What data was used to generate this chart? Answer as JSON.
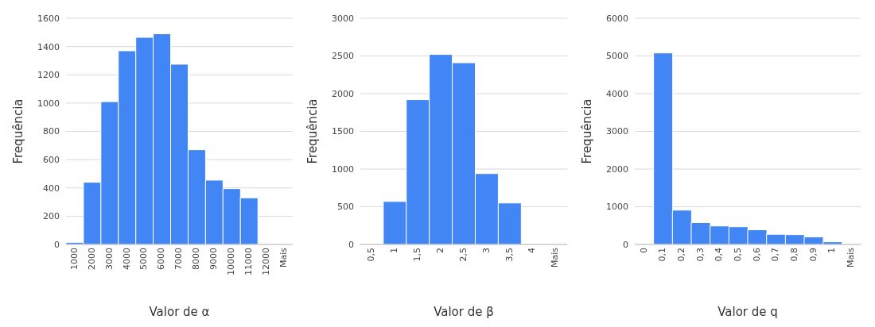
{
  "chart_data": [
    {
      "type": "bar",
      "xlabel": "Valor de α",
      "ylabel": "Frequência",
      "categories": [
        "1000",
        "2000",
        "3000",
        "4000",
        "5000",
        "6000",
        "7000",
        "8000",
        "9000",
        "10000",
        "11000",
        "12000",
        "Mais"
      ],
      "values": [
        15,
        440,
        1010,
        1370,
        1465,
        1490,
        1275,
        670,
        455,
        395,
        330,
        0,
        0
      ],
      "color": "#4285f4",
      "ylim": [
        0,
        1600
      ],
      "yticks": [
        0,
        200,
        400,
        600,
        800,
        1000,
        1200,
        1400,
        1600
      ],
      "grid": "y"
    },
    {
      "type": "bar",
      "xlabel": "Valor de β",
      "ylabel": "Frequência",
      "categories": [
        "0,5",
        "1",
        "1,5",
        "2",
        "2,5",
        "3",
        "3,5",
        "4",
        "Mais"
      ],
      "values": [
        0,
        570,
        1920,
        2520,
        2410,
        940,
        550,
        0,
        0
      ],
      "color": "#4285f4",
      "ylim": [
        0,
        3000
      ],
      "yticks": [
        0,
        500,
        1000,
        1500,
        2000,
        2500,
        3000
      ],
      "grid": "y"
    },
    {
      "type": "bar",
      "xlabel": "Valor de q",
      "ylabel": "Frequência",
      "categories": [
        "0",
        "0,1",
        "0,2",
        "0,3",
        "0,4",
        "0,5",
        "0,6",
        "0,7",
        "0,8",
        "0,9",
        "1",
        "Mais"
      ],
      "values": [
        0,
        5080,
        910,
        580,
        490,
        470,
        390,
        270,
        260,
        200,
        70,
        0
      ],
      "color": "#4285f4",
      "ylim": [
        0,
        6000
      ],
      "yticks": [
        0,
        1000,
        2000,
        3000,
        4000,
        5000,
        6000
      ],
      "grid": "y"
    }
  ]
}
